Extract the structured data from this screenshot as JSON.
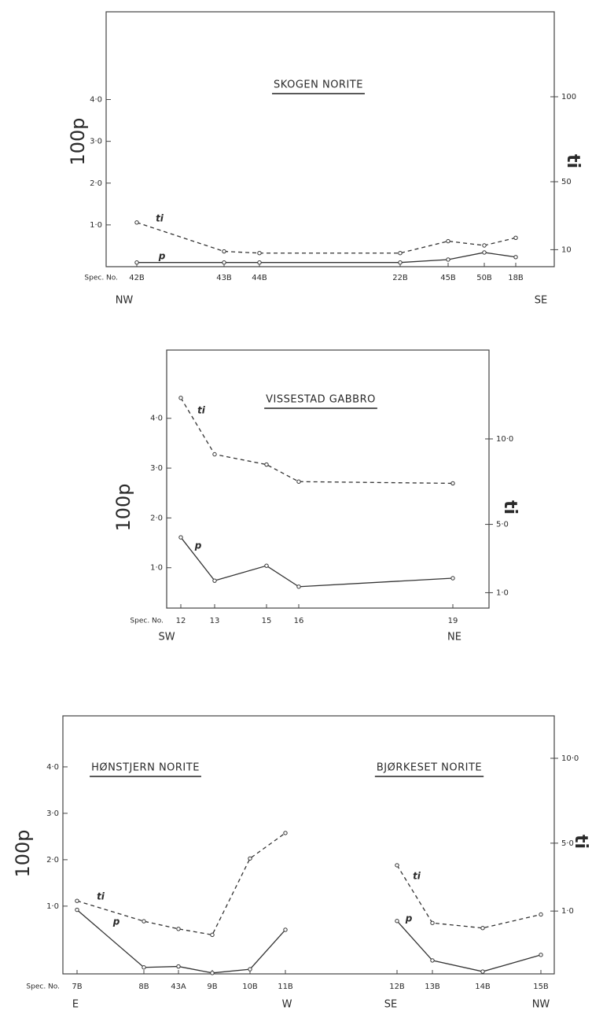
{
  "chart_data": [
    {
      "type": "line",
      "title": "SKOGEN NORITE",
      "xlabel": "Spec. No.",
      "ylabel": "100p",
      "y2label": "ti",
      "direction_labels": [
        "NW",
        "SE"
      ],
      "categories": [
        "42B",
        "43B",
        "44B",
        "22B",
        "45B",
        "50B",
        "18B"
      ],
      "ylim": [
        0,
        6.1
      ],
      "yticks": [
        {
          "value": 1,
          "label": "1·0"
        },
        {
          "value": 2,
          "label": "2·0"
        },
        {
          "value": 3,
          "label": "3·0"
        },
        {
          "value": 4,
          "label": "4·0"
        }
      ],
      "y2lim": [
        0,
        150
      ],
      "y2ticks": [
        10,
        50,
        100
      ],
      "series": [
        {
          "name": "ti",
          "axis": "y2",
          "color": "#333333",
          "linestyle": "dashed",
          "values": [
            26,
            9,
            8,
            8,
            15,
            12.5,
            17
          ]
        },
        {
          "name": "p",
          "color": "#333333",
          "linestyle": "solid",
          "values": [
            0.1,
            0.1,
            0.1,
            0.1,
            0.17,
            0.34,
            0.23
          ]
        }
      ]
    },
    {
      "type": "line",
      "title": "VISSESTAD GABBRO",
      "xlabel": "Spec. No.",
      "ylabel": "100p",
      "y2label": "ti",
      "direction_labels": [
        "SW",
        "NE"
      ],
      "categories": [
        "12",
        "13",
        "15",
        "16",
        "19"
      ],
      "ylim": [
        0.19,
        5.37
      ],
      "yticks": [
        {
          "value": 1,
          "label": "1·0"
        },
        {
          "value": 2,
          "label": "2·0"
        },
        {
          "value": 3,
          "label": "3·0"
        },
        {
          "value": 4,
          "label": "4·0"
        }
      ],
      "y2lim": [
        0.1,
        15.2
      ],
      "y2ticks": [
        {
          "value": 1,
          "label": "1·0"
        },
        {
          "value": 5,
          "label": "5·0"
        },
        {
          "value": 10,
          "label": "10·0"
        }
      ],
      "series": [
        {
          "name": "ti",
          "axis": "y2",
          "color": "#333333",
          "linestyle": "dashed",
          "values": [
            12.4,
            9.1,
            8.5,
            7.5,
            7.4
          ]
        },
        {
          "name": "p",
          "color": "#333333",
          "linestyle": "solid",
          "values": [
            1.61,
            0.74,
            1.04,
            0.62,
            0.79
          ]
        }
      ]
    },
    {
      "type": "line",
      "panel_titles": [
        "HØNSTJERN NORITE",
        "BJØRKESET NORITE"
      ],
      "xlabel": "Spec. No.",
      "ylabel": "100p",
      "y2label": "ti",
      "direction_labels": [
        "E",
        "W",
        "SE",
        "NW"
      ],
      "categories": [
        "7B",
        "8B",
        "43A",
        "9B",
        "10B",
        "11B",
        null,
        "12B",
        "13B",
        "14B",
        "15B"
      ],
      "ylim": [
        -0.46,
        5.1
      ],
      "yticks": [
        {
          "value": 1,
          "label": "1·0"
        },
        {
          "value": 2,
          "label": "2·0"
        },
        {
          "value": 3,
          "label": "3·0"
        },
        {
          "value": 4,
          "label": "4·0"
        }
      ],
      "y2lim": [
        -2.7,
        12.5
      ],
      "y2ticks": [
        {
          "value": 1,
          "label": "1·0"
        },
        {
          "value": 5,
          "label": "5·0"
        },
        {
          "value": 10,
          "label": "10·0"
        }
      ],
      "series": [
        {
          "name": "ti",
          "axis": "y2",
          "color": "#333333",
          "linestyle": "dashed",
          "values": [
            1.6,
            0.4,
            -0.05,
            -0.4,
            4.1,
            5.6,
            null,
            3.7,
            0.3,
            0,
            0.8
          ]
        },
        {
          "name": "p",
          "color": "#333333",
          "linestyle": "solid",
          "values": [
            0.92,
            -0.32,
            -0.3,
            -0.44,
            -0.36,
            0.49,
            null,
            0.68,
            -0.17,
            -0.41,
            -0.05
          ]
        }
      ]
    }
  ]
}
